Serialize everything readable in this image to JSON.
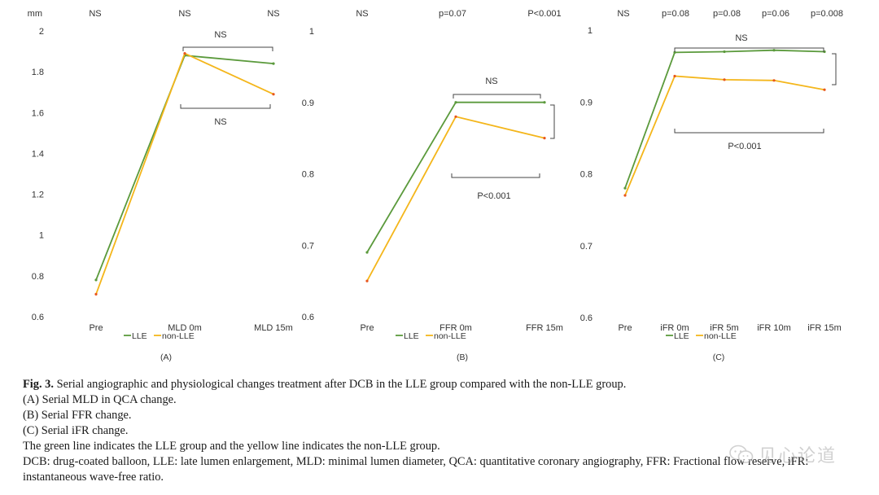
{
  "colors": {
    "lle": "#5b9a3c",
    "non_lle": "#f4b61b",
    "point": "#e8551c",
    "axis_text": "#333333",
    "bracket": "#444444"
  },
  "chart_data": [
    {
      "type": "line",
      "panel_label": "(A)",
      "y_unit": "mm",
      "categories": [
        "Pre",
        "MLD 0m",
        "MLD 15m"
      ],
      "ylim": [
        0.6,
        2
      ],
      "y_ticks": [
        "0.6",
        "0.8",
        "1",
        "1.2",
        "1.4",
        "1.6",
        "1.8",
        "2"
      ],
      "top_annotations": [
        "NS",
        "NS",
        "NS"
      ],
      "series": [
        {
          "name": "LLE",
          "values": [
            0.78,
            1.88,
            1.84
          ]
        },
        {
          "name": "non-LLE",
          "values": [
            0.71,
            1.89,
            1.69
          ]
        }
      ],
      "bracket_labels": [
        "NS",
        "NS"
      ],
      "legend": [
        "LLE",
        "non-LLE"
      ],
      "grid": false
    },
    {
      "type": "line",
      "panel_label": "(B)",
      "y_unit": "",
      "categories": [
        "Pre",
        "FFR 0m",
        "FFR 15m"
      ],
      "ylim": [
        0.6,
        1
      ],
      "y_ticks": [
        "0.6",
        "0.7",
        "0.8",
        "0.9",
        "1"
      ],
      "top_annotations": [
        "NS",
        "p=0.07",
        "P<0.001"
      ],
      "series": [
        {
          "name": "LLE",
          "values": [
            0.69,
            0.9,
            0.9
          ]
        },
        {
          "name": "non-LLE",
          "values": [
            0.65,
            0.88,
            0.85
          ]
        }
      ],
      "bracket_labels": [
        "NS",
        "P<0.001"
      ],
      "legend": [
        "LLE",
        "non-LLE"
      ],
      "grid": false
    },
    {
      "type": "line",
      "panel_label": "(C)",
      "y_unit": "",
      "categories": [
        "Pre",
        "iFR 0m",
        "iFR 5m",
        "iFR 10m",
        "iFR 15m"
      ],
      "ylim": [
        0.6,
        1
      ],
      "y_ticks": [
        "0.6",
        "0.7",
        "0.8",
        "0.9",
        "1"
      ],
      "top_annotations": [
        "NS",
        "p=0.08",
        "p=0.08",
        "p=0.06",
        "p=0.008"
      ],
      "series": [
        {
          "name": "LLE",
          "values": [
            0.78,
            0.969,
            0.97,
            0.972,
            0.97
          ]
        },
        {
          "name": "non-LLE",
          "values": [
            0.77,
            0.936,
            0.931,
            0.93,
            0.917
          ]
        }
      ],
      "bracket_labels": [
        "NS",
        "P<0.001"
      ],
      "legend": [
        "LLE",
        "non-LLE"
      ],
      "grid": false
    }
  ],
  "caption": {
    "fig_label": "Fig. 3.",
    "title": "Serial angiographic and physiological changes treatment after DCB in the LLE group compared with the non-LLE group.",
    "lines": [
      "(A) Serial MLD in QCA change.",
      "(B) Serial FFR change.",
      "(C) Serial iFR change.",
      "The green line indicates the LLE group and the yellow line indicates the non-LLE group.",
      "DCB: drug-coated balloon, LLE: late lumen enlargement, MLD: minimal lumen diameter, QCA: quantitative coronary angiography, FFR: Fractional flow reserve, iFR:",
      "instantaneous wave-free ratio."
    ]
  },
  "watermark": {
    "icon": "wechat-icon",
    "text": "见心论道"
  }
}
